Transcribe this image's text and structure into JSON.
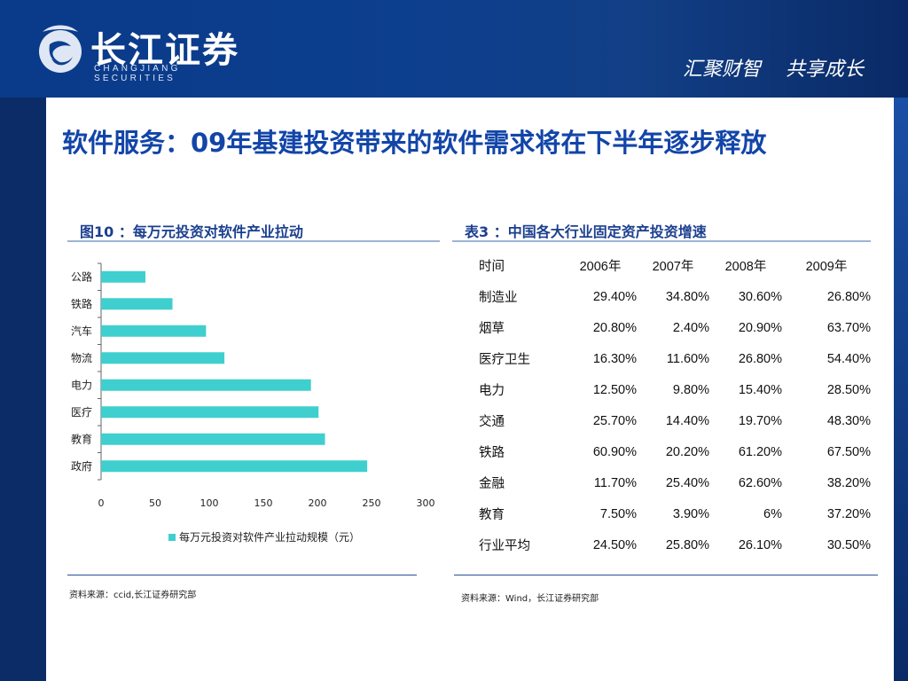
{
  "header": {
    "logo_cn": "长江证券",
    "logo_en": "CHANGJIANG SECURITIES",
    "slogan": "汇聚财智    共享成长"
  },
  "title": "软件服务：09年基建投资带来的软件需求将在下半年逐步释放",
  "figure": {
    "heading": "图10 ：每万元投资对软件产业拉动",
    "source": "资料来源：ccid,长江证券研究部"
  },
  "table_section": {
    "heading": "表3 ：中国各大行业固定资产投资增速",
    "source": "资料来源：Wind，长江证券研究部",
    "header": [
      "时间",
      "2006年",
      "2007年",
      "2008年",
      "2009年"
    ],
    "rows": [
      {
        "label": "制造业",
        "values": [
          "29.40%",
          "34.80%",
          "30.60%",
          "26.80%"
        ]
      },
      {
        "label": "烟草",
        "values": [
          "20.80%",
          "2.40%",
          "20.90%",
          "63.70%"
        ]
      },
      {
        "label": "医疗卫生",
        "values": [
          "16.30%",
          "11.60%",
          "26.80%",
          "54.40%"
        ]
      },
      {
        "label": "电力",
        "values": [
          "12.50%",
          "9.80%",
          "15.40%",
          "28.50%"
        ]
      },
      {
        "label": "交通",
        "values": [
          "25.70%",
          "14.40%",
          "19.70%",
          "48.30%"
        ]
      },
      {
        "label": "铁路",
        "values": [
          "60.90%",
          "20.20%",
          "61.20%",
          "67.50%"
        ]
      },
      {
        "label": "金融",
        "values": [
          "11.70%",
          "25.40%",
          "62.60%",
          "38.20%"
        ]
      },
      {
        "label": "教育",
        "values": [
          "7.50%",
          "3.90%",
          "6%",
          "37.20%"
        ]
      },
      {
        "label": "行业平均",
        "values": [
          "24.50%",
          "25.80%",
          "26.10%",
          "30.50%"
        ]
      }
    ]
  },
  "colors": {
    "bar": "#3fcfcf",
    "title": "#1245a8",
    "header_bg": "#0d3f8f"
  },
  "chart_data": {
    "type": "bar",
    "orientation": "horizontal",
    "categories": [
      "公路",
      "铁路",
      "汽车",
      "物流",
      "电力",
      "医疗",
      "教育",
      "政府"
    ],
    "series": [
      {
        "name": "每万元投资对软件产业拉动规模（元）",
        "values": [
          41,
          66,
          97,
          114,
          194,
          201,
          207,
          246
        ]
      }
    ],
    "xlim": [
      0,
      300
    ],
    "xticks": [
      0,
      50,
      100,
      150,
      200,
      250,
      300
    ],
    "grid": false,
    "legend": "bottom"
  }
}
